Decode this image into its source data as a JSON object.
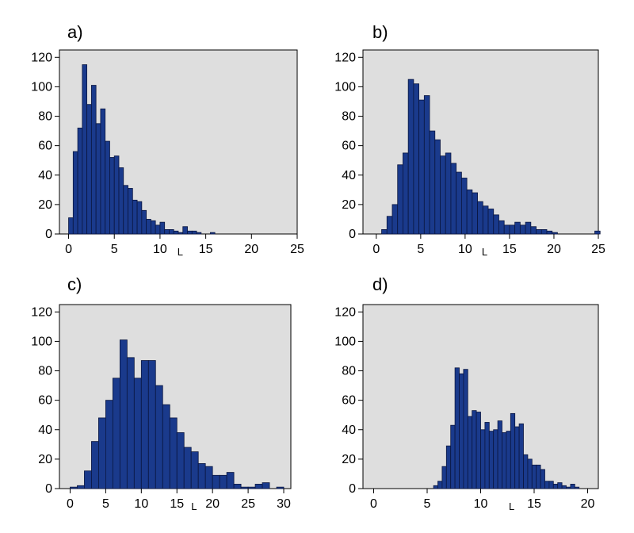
{
  "colors": {
    "bar": "#1a3a8c",
    "plot_background": "#dedede"
  },
  "chart_data": [
    {
      "type": "bar",
      "panel_label": "a)",
      "xlabel": "L",
      "ylabel": "",
      "bin_width": 0.5,
      "xlim": [
        -1,
        25
      ],
      "ylim": [
        0,
        125
      ],
      "xticks": [
        0,
        5,
        10,
        15,
        20,
        25
      ],
      "xtick_labels": [
        "0",
        "5",
        "10",
        "15",
        "20",
        "25"
      ],
      "yticks": [
        0,
        20,
        40,
        60,
        80,
        100,
        120
      ],
      "ytick_labels": [
        "0",
        "20",
        "40",
        "60",
        "80",
        "100",
        "120"
      ],
      "xlabel_at": 12.2,
      "bins_start": 0,
      "values": [
        11,
        56,
        72,
        115,
        88,
        101,
        75,
        85,
        63,
        52,
        53,
        45,
        33,
        31,
        23,
        22,
        16,
        10,
        9,
        6,
        8,
        3,
        3,
        2,
        1,
        5,
        2,
        2,
        1,
        0,
        0,
        1
      ]
    },
    {
      "type": "bar",
      "panel_label": "b)",
      "xlabel": "L",
      "ylabel": "",
      "bin_width": 0.6,
      "xlim": [
        -1.5,
        25
      ],
      "ylim": [
        0,
        125
      ],
      "xticks": [
        0,
        5,
        10,
        15,
        20,
        25
      ],
      "xtick_labels": [
        "0",
        "5",
        "10",
        "15",
        "20",
        "25"
      ],
      "yticks": [
        0,
        20,
        40,
        60,
        80,
        100,
        120
      ],
      "ytick_labels": [
        "0",
        "20",
        "40",
        "60",
        "80",
        "100",
        "120"
      ],
      "xlabel_at": 12.2,
      "bins_start": 0.6,
      "values": [
        3,
        12,
        20,
        47,
        55,
        105,
        102,
        91,
        94,
        70,
        64,
        53,
        55,
        48,
        42,
        38,
        30,
        28,
        22,
        19,
        17,
        13,
        9,
        6,
        6,
        8,
        6,
        8,
        5,
        3,
        3,
        2,
        1,
        0,
        0,
        0,
        0,
        0,
        0,
        0,
        2
      ]
    },
    {
      "type": "bar",
      "panel_label": "c)",
      "xlabel": "L",
      "ylabel": "",
      "bin_width": 1,
      "xlim": [
        -1.5,
        31
      ],
      "ylim": [
        0,
        125
      ],
      "xticks": [
        0,
        5,
        10,
        15,
        20,
        25,
        30
      ],
      "xtick_labels": [
        "0",
        "5",
        "10",
        "15",
        "20",
        "25",
        "30"
      ],
      "yticks": [
        0,
        20,
        40,
        60,
        80,
        100,
        120
      ],
      "ytick_labels": [
        "0",
        "20",
        "40",
        "60",
        "80",
        "100",
        "120"
      ],
      "xlabel_at": 17.4,
      "bins_start": 0,
      "values": [
        1,
        2,
        12,
        32,
        48,
        60,
        75,
        101,
        89,
        75,
        87,
        87,
        70,
        57,
        48,
        38,
        28,
        25,
        17,
        15,
        9,
        9,
        11,
        3,
        1,
        1,
        3,
        4,
        0,
        1
      ]
    },
    {
      "type": "bar",
      "panel_label": "d)",
      "xlabel": "L",
      "ylabel": "",
      "bin_width": 0.4,
      "xlim": [
        -1,
        21
      ],
      "ylim": [
        0,
        125
      ],
      "xticks": [
        0,
        5,
        10,
        15,
        20
      ],
      "xtick_labels": [
        "0",
        "5",
        "10",
        "15",
        "20"
      ],
      "yticks": [
        0,
        20,
        40,
        60,
        80,
        100,
        120
      ],
      "ytick_labels": [
        "0",
        "20",
        "40",
        "60",
        "80",
        "100",
        "120"
      ],
      "xlabel_at": 12.9,
      "bins_start": 5.6,
      "values": [
        2,
        5,
        15,
        29,
        43,
        82,
        78,
        81,
        49,
        53,
        52,
        40,
        45,
        39,
        40,
        46,
        38,
        39,
        51,
        42,
        44,
        23,
        20,
        16,
        16,
        13,
        5,
        5,
        3,
        4,
        2,
        1,
        3,
        1
      ]
    }
  ]
}
